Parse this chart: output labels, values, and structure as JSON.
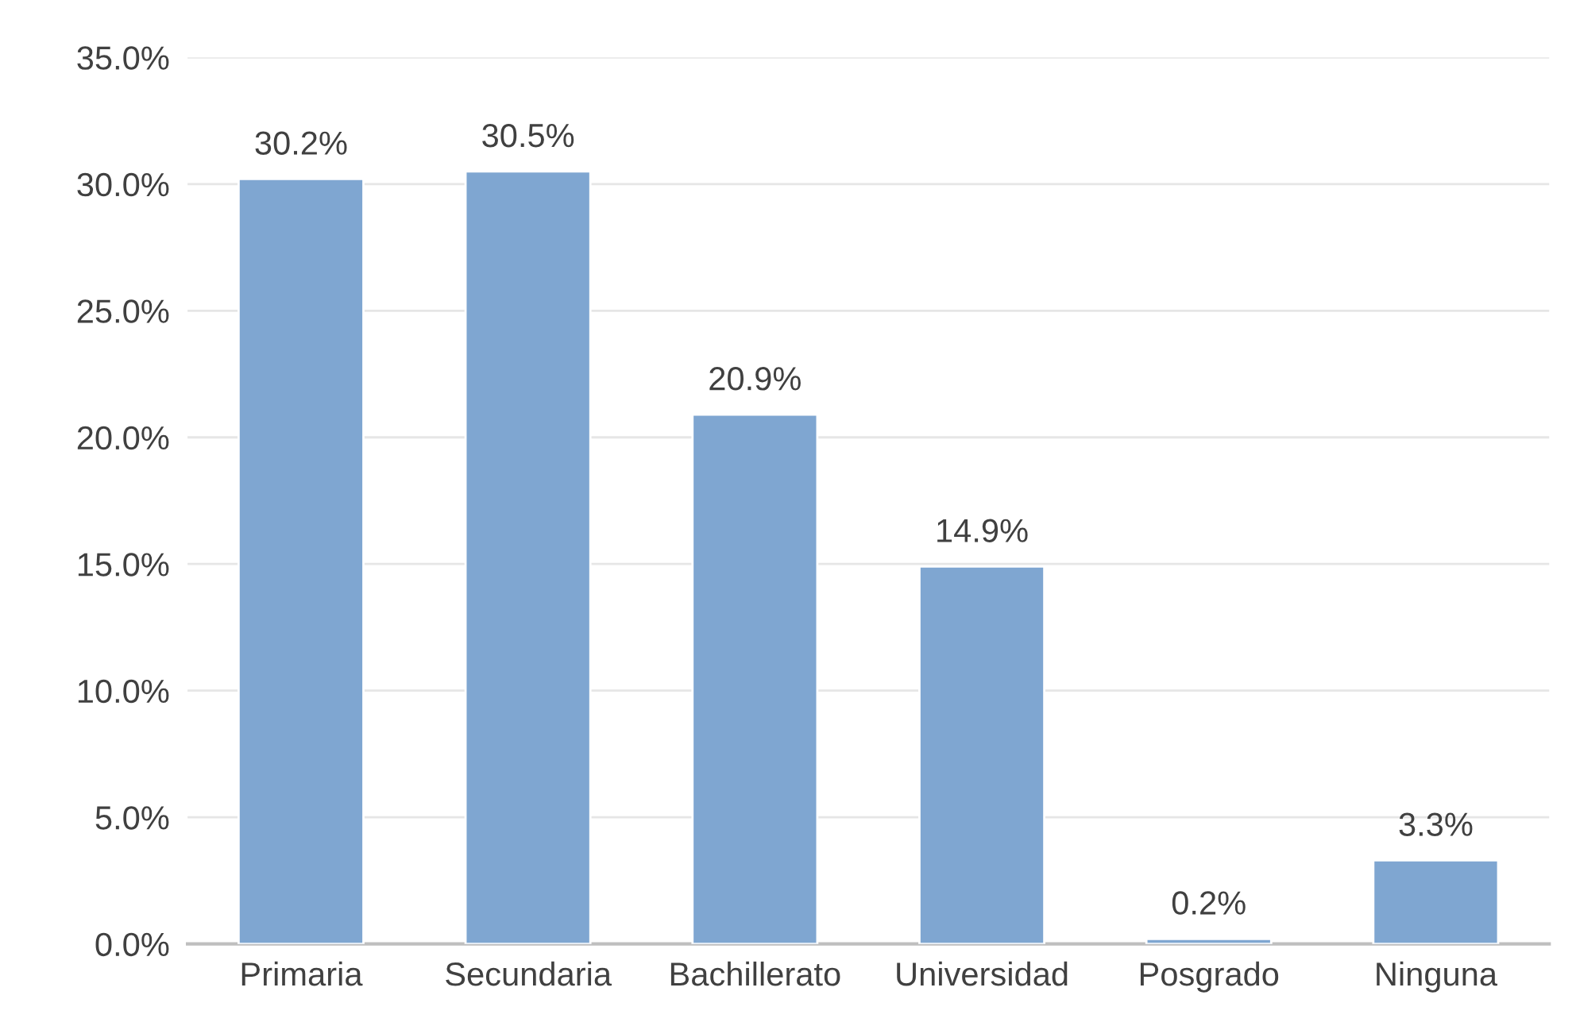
{
  "chart_data": {
    "type": "bar",
    "categories": [
      "Primaria",
      "Secundaria",
      "Bachillerato",
      "Universidad",
      "Posgrado",
      "Ninguna"
    ],
    "values": [
      30.2,
      30.5,
      20.9,
      14.9,
      0.2,
      3.3
    ],
    "value_labels": [
      "30.2%",
      "30.5%",
      "20.9%",
      "14.9%",
      "0.2%",
      "3.3%"
    ],
    "color": "#7fa6d1",
    "ylim": [
      0,
      35
    ],
    "yticks": [
      {
        "value": 0,
        "label": "0.0%"
      },
      {
        "value": 5,
        "label": "5.0%"
      },
      {
        "value": 10,
        "label": "10.0%"
      },
      {
        "value": 15,
        "label": "15.0%"
      },
      {
        "value": 20,
        "label": "20.0%"
      },
      {
        "value": 25,
        "label": "25.0%"
      },
      {
        "value": 30,
        "label": "30.0%"
      },
      {
        "value": 35,
        "label": "35.0%"
      }
    ],
    "grid": "y"
  }
}
